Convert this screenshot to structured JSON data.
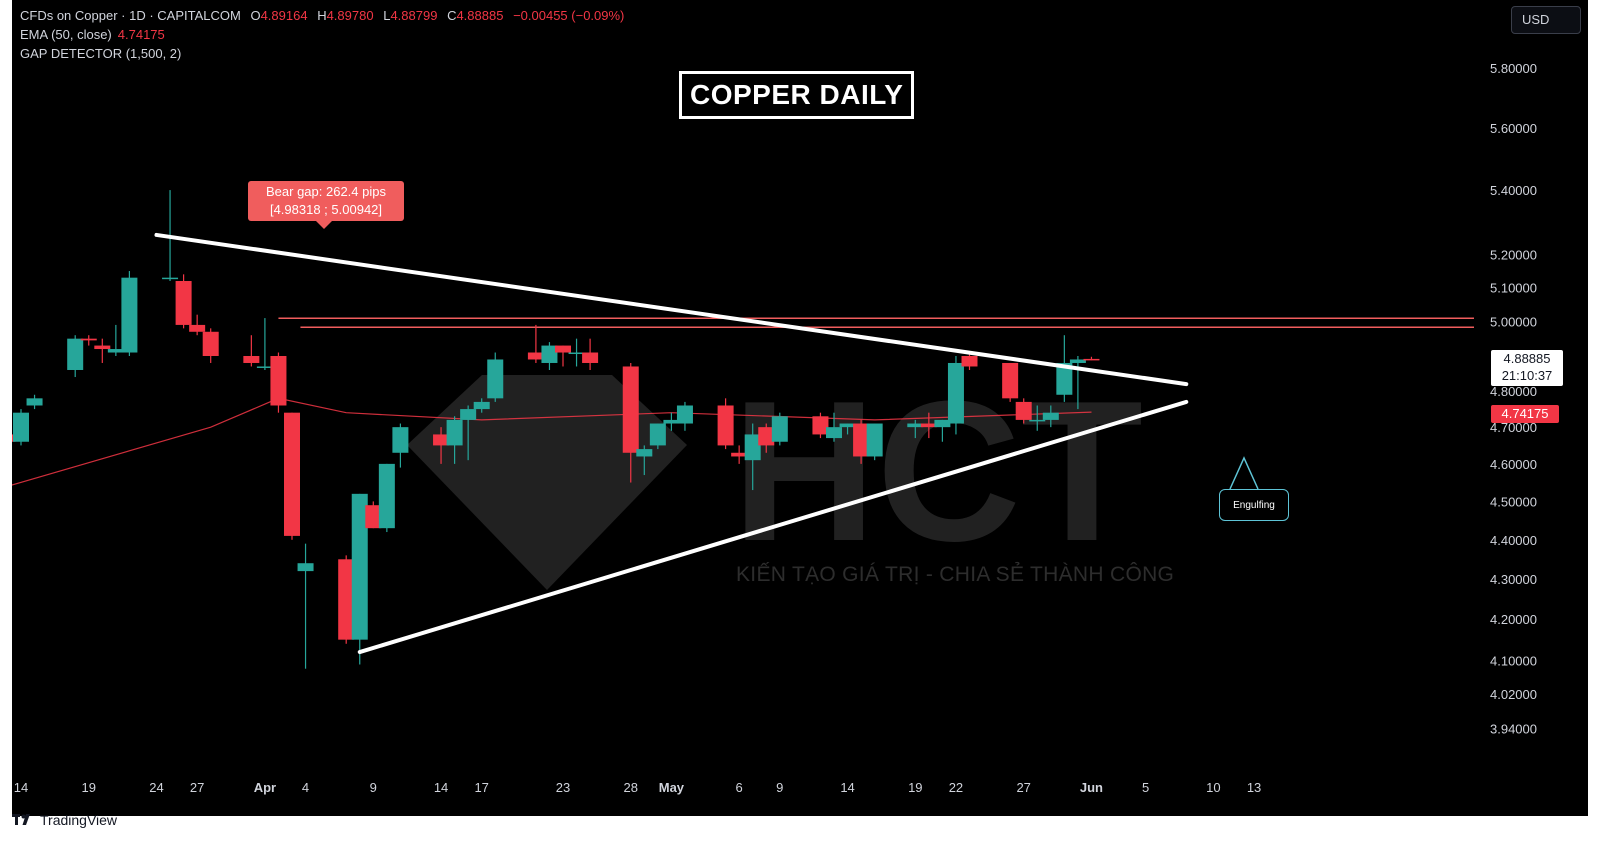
{
  "legend": {
    "symbol": "CFDs on Copper · 1D · CAPITALCOM",
    "open_label": "O",
    "open": "4.89164",
    "high_label": "H",
    "high": "4.89780",
    "low_label": "L",
    "low": "4.88799",
    "close_label": "C",
    "close": "4.88885",
    "change": "−0.00455 (−0.09%)",
    "ema_label": "EMA (50, close)",
    "ema_value": "4.74175",
    "gap_label": "GAP DETECTOR (1,500, 2)"
  },
  "currency_button": "USD",
  "title_box": "COPPER DAILY",
  "bear_gap": {
    "line1": "Bear gap: 262.4 pips",
    "line2": "[4.98318 ; 5.00942]",
    "low": 4.98318,
    "high": 5.00942
  },
  "engulfing_label": "Engulfing",
  "watermark": {
    "logo_text": "HCT",
    "tagline": "KIẾN TẠO GIÁ TRỊ - CHIA SẺ THÀNH CÔNG"
  },
  "price_tags": {
    "last_price": "4.88885",
    "countdown": "21:10:37",
    "ema": "4.74175"
  },
  "brand": "TradingView",
  "colors": {
    "up": "#26a69a",
    "down": "#f23645",
    "background": "#000000",
    "ema": "#f23645",
    "trendline": "#ffffff",
    "gap_lines": "#f05d5d"
  },
  "chart_data": {
    "type": "candlestick",
    "title": "COPPER DAILY",
    "y_scale": "log",
    "ylim": [
      3.88,
      5.96
    ],
    "y_ticks": [
      5.8,
      5.6,
      5.4,
      5.2,
      5.1,
      5.0,
      4.8,
      4.7,
      4.6,
      4.5,
      4.4,
      4.3,
      4.2,
      4.1,
      4.02,
      3.94
    ],
    "y_tick_labels": [
      "5.80000",
      "5.60000",
      "5.40000",
      "5.20000",
      "5.10000",
      "5.00000",
      "4.80000",
      "4.70000",
      "4.60000",
      "4.50000",
      "4.40000",
      "4.30000",
      "4.20000",
      "4.10000",
      "4.02000",
      "3.94000"
    ],
    "x_ticks": [
      {
        "label": "14",
        "date": "2024-03-14"
      },
      {
        "label": "19",
        "date": "2024-03-19"
      },
      {
        "label": "24",
        "date": "2024-03-24"
      },
      {
        "label": "27",
        "date": "2024-03-27"
      },
      {
        "label": "Apr",
        "date": "2024-04-01"
      },
      {
        "label": "4",
        "date": "2024-04-04"
      },
      {
        "label": "9",
        "date": "2024-04-09"
      },
      {
        "label": "14",
        "date": "2024-04-14"
      },
      {
        "label": "17",
        "date": "2024-04-17"
      },
      {
        "label": "23",
        "date": "2024-04-23"
      },
      {
        "label": "28",
        "date": "2024-04-28"
      },
      {
        "label": "May",
        "date": "2024-05-01"
      },
      {
        "label": "6",
        "date": "2024-05-06"
      },
      {
        "label": "9",
        "date": "2024-05-09"
      },
      {
        "label": "14",
        "date": "2024-05-14"
      },
      {
        "label": "19",
        "date": "2024-05-19"
      },
      {
        "label": "22",
        "date": "2024-05-22"
      },
      {
        "label": "27",
        "date": "2024-05-27"
      },
      {
        "label": "Jun",
        "date": "2024-06-01"
      },
      {
        "label": "5",
        "date": "2024-06-05"
      },
      {
        "label": "10",
        "date": "2024-06-10"
      },
      {
        "label": "13",
        "date": "2024-06-13"
      }
    ],
    "candles": [
      {
        "date": "2024-03-13",
        "o": 4.68,
        "h": 4.7,
        "l": 4.66,
        "c": 4.66
      },
      {
        "date": "2024-03-14",
        "o": 4.66,
        "h": 4.75,
        "l": 4.65,
        "c": 4.74
      },
      {
        "date": "2024-03-15",
        "o": 4.76,
        "h": 4.79,
        "l": 4.75,
        "c": 4.78
      },
      {
        "date": "2024-03-18",
        "o": 4.86,
        "h": 4.96,
        "l": 4.84,
        "c": 4.95
      },
      {
        "date": "2024-03-19",
        "o": 4.95,
        "h": 4.96,
        "l": 4.93,
        "c": 4.945
      },
      {
        "date": "2024-03-20",
        "o": 4.93,
        "h": 4.95,
        "l": 4.88,
        "c": 4.92
      },
      {
        "date": "2024-03-21",
        "o": 4.91,
        "h": 4.99,
        "l": 4.9,
        "c": 4.92
      },
      {
        "date": "2024-03-22",
        "o": 4.91,
        "h": 5.15,
        "l": 4.9,
        "c": 5.13
      },
      {
        "date": "2024-03-25",
        "o": 5.13,
        "h": 5.4,
        "l": 5.12,
        "c": 5.13
      },
      {
        "date": "2024-03-26",
        "o": 5.12,
        "h": 5.14,
        "l": 4.98,
        "c": 4.99
      },
      {
        "date": "2024-03-27",
        "o": 4.99,
        "h": 5.02,
        "l": 4.96,
        "c": 4.97
      },
      {
        "date": "2024-03-28",
        "o": 4.97,
        "h": 4.98,
        "l": 4.88,
        "c": 4.9
      },
      {
        "date": "2024-03-31",
        "o": 4.9,
        "h": 4.96,
        "l": 4.87,
        "c": 4.88
      },
      {
        "date": "2024-04-01",
        "o": 4.87,
        "h": 5.01,
        "l": 4.86,
        "c": 4.87
      },
      {
        "date": "2024-04-02",
        "o": 4.9,
        "h": 4.91,
        "l": 4.74,
        "c": 4.76
      },
      {
        "date": "2024-04-03",
        "o": 4.74,
        "h": 4.74,
        "l": 4.4,
        "c": 4.41
      },
      {
        "date": "2024-04-04",
        "o": 4.32,
        "h": 4.39,
        "l": 4.08,
        "c": 4.34
      },
      {
        "date": "2024-04-07",
        "o": 4.35,
        "h": 4.36,
        "l": 4.14,
        "c": 4.15
      },
      {
        "date": "2024-04-08",
        "o": 4.15,
        "h": 4.52,
        "l": 4.09,
        "c": 4.52
      },
      {
        "date": "2024-04-09",
        "o": 4.49,
        "h": 4.5,
        "l": 4.43,
        "c": 4.43
      },
      {
        "date": "2024-04-10",
        "o": 4.43,
        "h": 4.6,
        "l": 4.42,
        "c": 4.6
      },
      {
        "date": "2024-04-11",
        "o": 4.63,
        "h": 4.71,
        "l": 4.59,
        "c": 4.7
      },
      {
        "date": "2024-04-14",
        "o": 4.68,
        "h": 4.7,
        "l": 4.6,
        "c": 4.65
      },
      {
        "date": "2024-04-15",
        "o": 4.65,
        "h": 4.73,
        "l": 4.6,
        "c": 4.72
      },
      {
        "date": "2024-04-16",
        "o": 4.72,
        "h": 4.76,
        "l": 4.61,
        "c": 4.75
      },
      {
        "date": "2024-04-17",
        "o": 4.75,
        "h": 4.78,
        "l": 4.74,
        "c": 4.77
      },
      {
        "date": "2024-04-18",
        "o": 4.78,
        "h": 4.91,
        "l": 4.77,
        "c": 4.89
      },
      {
        "date": "2024-04-21",
        "o": 4.91,
        "h": 4.99,
        "l": 4.88,
        "c": 4.89
      },
      {
        "date": "2024-04-22",
        "o": 4.88,
        "h": 4.94,
        "l": 4.86,
        "c": 4.93
      },
      {
        "date": "2024-04-23",
        "o": 4.93,
        "h": 4.93,
        "l": 4.87,
        "c": 4.91
      },
      {
        "date": "2024-04-24",
        "o": 4.91,
        "h": 4.95,
        "l": 4.87,
        "c": 4.91
      },
      {
        "date": "2024-04-25",
        "o": 4.91,
        "h": 4.95,
        "l": 4.86,
        "c": 4.88
      },
      {
        "date": "2024-04-28",
        "o": 4.87,
        "h": 4.88,
        "l": 4.55,
        "c": 4.63
      },
      {
        "date": "2024-04-29",
        "o": 4.62,
        "h": 4.65,
        "l": 4.57,
        "c": 4.64
      },
      {
        "date": "2024-04-30",
        "o": 4.65,
        "h": 4.71,
        "l": 4.64,
        "c": 4.71
      },
      {
        "date": "2024-05-01",
        "o": 4.71,
        "h": 4.74,
        "l": 4.69,
        "c": 4.72
      },
      {
        "date": "2024-05-02",
        "o": 4.71,
        "h": 4.77,
        "l": 4.69,
        "c": 4.76
      },
      {
        "date": "2024-05-05",
        "o": 4.76,
        "h": 4.78,
        "l": 4.64,
        "c": 4.65
      },
      {
        "date": "2024-05-06",
        "o": 4.63,
        "h": 4.65,
        "l": 4.6,
        "c": 4.62
      },
      {
        "date": "2024-05-07",
        "o": 4.61,
        "h": 4.71,
        "l": 4.53,
        "c": 4.68
      },
      {
        "date": "2024-05-08",
        "o": 4.7,
        "h": 4.71,
        "l": 4.63,
        "c": 4.65
      },
      {
        "date": "2024-05-09",
        "o": 4.66,
        "h": 4.74,
        "l": 4.65,
        "c": 4.73
      },
      {
        "date": "2024-05-12",
        "o": 4.73,
        "h": 4.74,
        "l": 4.67,
        "c": 4.68
      },
      {
        "date": "2024-05-13",
        "o": 4.67,
        "h": 4.74,
        "l": 4.66,
        "c": 4.7
      },
      {
        "date": "2024-05-14",
        "o": 4.7,
        "h": 4.71,
        "l": 4.68,
        "c": 4.71
      },
      {
        "date": "2024-05-15",
        "o": 4.71,
        "h": 4.72,
        "l": 4.6,
        "c": 4.62
      },
      {
        "date": "2024-05-16",
        "o": 4.62,
        "h": 4.71,
        "l": 4.61,
        "c": 4.71
      },
      {
        "date": "2024-05-19",
        "o": 4.7,
        "h": 4.72,
        "l": 4.67,
        "c": 4.71
      },
      {
        "date": "2024-05-20",
        "o": 4.71,
        "h": 4.74,
        "l": 4.67,
        "c": 4.7
      },
      {
        "date": "2024-05-21",
        "o": 4.7,
        "h": 4.72,
        "l": 4.66,
        "c": 4.72
      },
      {
        "date": "2024-05-22",
        "o": 4.71,
        "h": 4.9,
        "l": 4.68,
        "c": 4.88
      },
      {
        "date": "2024-05-23",
        "o": 4.9,
        "h": 4.91,
        "l": 4.86,
        "c": 4.87
      },
      {
        "date": "2024-05-26",
        "o": 4.88,
        "h": 4.88,
        "l": 4.77,
        "c": 4.78
      },
      {
        "date": "2024-05-27",
        "o": 4.77,
        "h": 4.78,
        "l": 4.71,
        "c": 4.72
      },
      {
        "date": "2024-05-28",
        "o": 4.72,
        "h": 4.76,
        "l": 4.69,
        "c": 4.72
      },
      {
        "date": "2024-05-29",
        "o": 4.72,
        "h": 4.76,
        "l": 4.7,
        "c": 4.74
      },
      {
        "date": "2024-05-30",
        "o": 4.79,
        "h": 4.96,
        "l": 4.77,
        "c": 4.88
      },
      {
        "date": "2024-05-31",
        "o": 4.88,
        "h": 4.9,
        "l": 4.75,
        "c": 4.89
      },
      {
        "date": "2024-06-01",
        "o": 4.89164,
        "h": 4.8978,
        "l": 4.88799,
        "c": 4.88885
      }
    ],
    "ema": [
      {
        "date": "2024-03-13",
        "v": 4.54
      },
      {
        "date": "2024-03-28",
        "v": 4.7
      },
      {
        "date": "2024-04-02",
        "v": 4.78
      },
      {
        "date": "2024-04-07",
        "v": 4.74
      },
      {
        "date": "2024-04-17",
        "v": 4.72
      },
      {
        "date": "2024-05-01",
        "v": 4.74
      },
      {
        "date": "2024-05-16",
        "v": 4.72
      },
      {
        "date": "2024-06-01",
        "v": 4.74175
      }
    ],
    "trendlines": [
      {
        "name": "upper",
        "from": {
          "date": "2024-03-24",
          "price": 5.26
        },
        "to": {
          "date": "2024-06-08",
          "price": 4.82
        }
      },
      {
        "name": "lower",
        "from": {
          "date": "2024-04-08",
          "price": 4.12
        },
        "to": {
          "date": "2024-06-08",
          "price": 4.77
        }
      }
    ],
    "bear_gap": {
      "start": "2024-04-02",
      "end": "2024-06-13",
      "low": 4.98318,
      "high": 5.00942
    }
  }
}
